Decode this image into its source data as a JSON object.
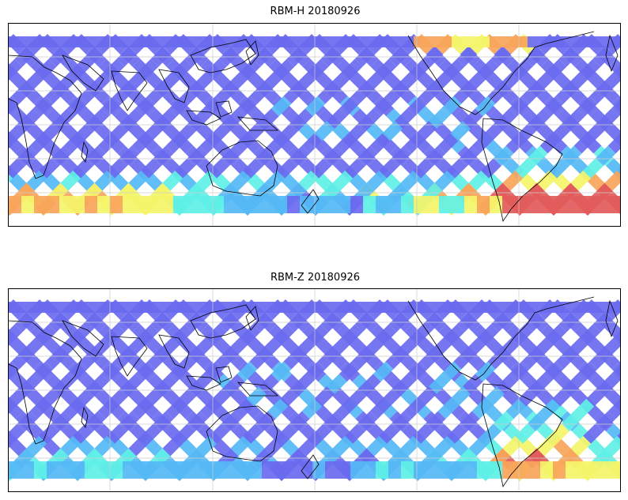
{
  "maps": [
    {
      "title": "RBM-H 20180926",
      "profile": "h"
    },
    {
      "title": "RBM-Z 20180926",
      "profile": "z"
    }
  ],
  "colors": {
    "track_low": "#6a6af0",
    "track_mid": "#55b8f5",
    "track_cyan": "#5ef0e6",
    "track_yellow": "#f4f46a",
    "track_orange": "#f7a55a",
    "track_high": "#e35b5b",
    "coast": "#000000",
    "grid": "#cccccc"
  }
}
